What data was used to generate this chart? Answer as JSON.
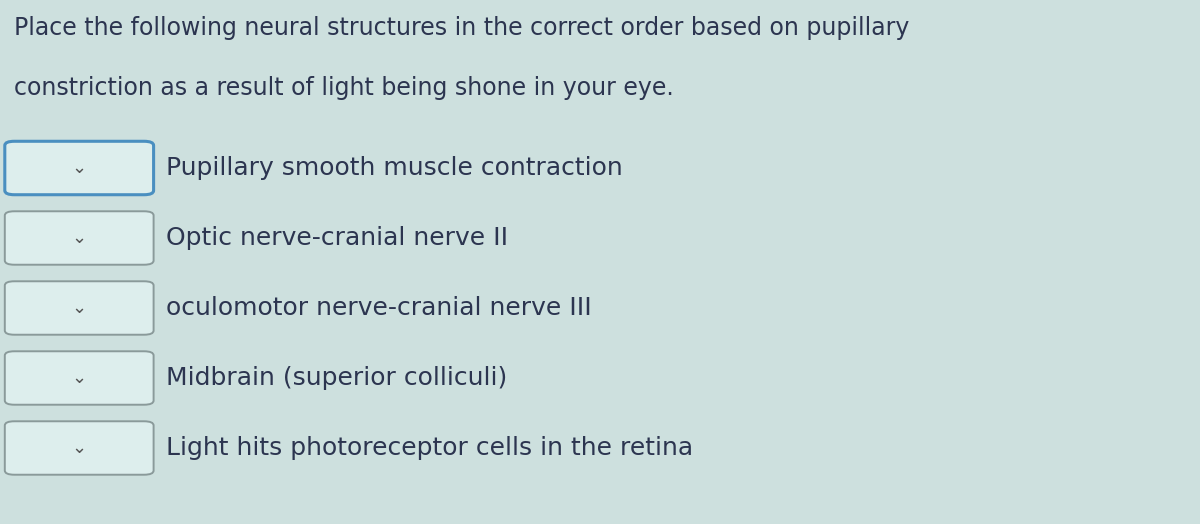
{
  "title_line1": "Place the following neural structures in the correct order based on pupillary",
  "title_line2": "constriction as a result of light being shone in your eye.",
  "background_color": "#cde0de",
  "items": [
    "Pupillary smooth muscle contraction",
    "Optic nerve-cranial nerve II",
    "oculomotor nerve-cranial nerve III",
    "Midbrain (superior colliculi)",
    "Light hits photoreceptor cells in the retina"
  ],
  "box_color_first": "#4a8fc0",
  "box_color_rest": "#8a9a9a",
  "box_fill": "#ddeeed",
  "text_color": "#2c3550",
  "title_color": "#2c3550",
  "font_size_title": 17,
  "font_size_items": 18,
  "font_size_chevron": 13
}
